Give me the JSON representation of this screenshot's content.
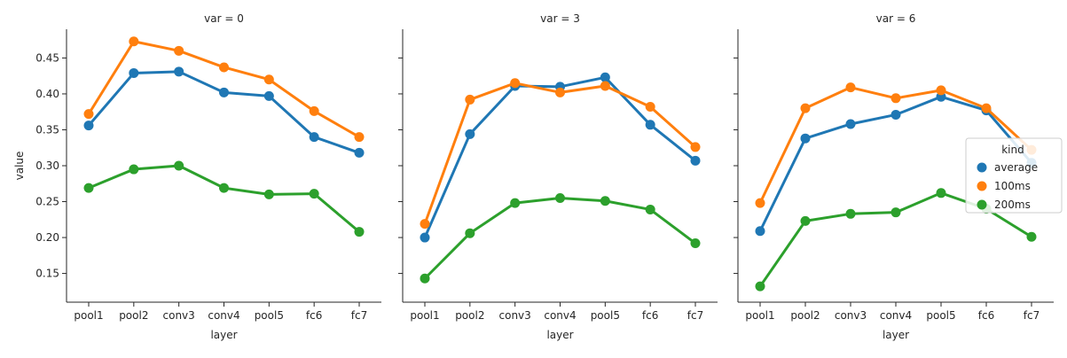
{
  "chart_data": {
    "type": "line",
    "layout": "facet-grid",
    "xlabel": "layer",
    "ylabel": "value",
    "categories": [
      "pool1",
      "pool2",
      "conv3",
      "conv4",
      "pool5",
      "fc6",
      "fc7"
    ],
    "ylim": [
      0.11,
      0.49
    ],
    "yticks": [
      0.15,
      0.2,
      0.25,
      0.3,
      0.35,
      0.4,
      0.45
    ],
    "ytick_labels": [
      "0.15",
      "0.20",
      "0.25",
      "0.30",
      "0.35",
      "0.40",
      "0.45"
    ],
    "grid": false,
    "legend": {
      "title": "kind",
      "placement": "right",
      "entries": [
        {
          "name": "average",
          "color": "#1f77b4"
        },
        {
          "name": "100ms",
          "color": "#ff7f0e"
        },
        {
          "name": "200ms",
          "color": "#2ca02c"
        }
      ]
    },
    "panels": [
      {
        "title": "var = 0",
        "series": [
          {
            "name": "average",
            "color": "#1f77b4",
            "values": [
              0.356,
              0.429,
              0.431,
              0.402,
              0.397,
              0.34,
              0.318
            ]
          },
          {
            "name": "100ms",
            "color": "#ff7f0e",
            "values": [
              0.372,
              0.473,
              0.46,
              0.437,
              0.42,
              0.376,
              0.34
            ]
          },
          {
            "name": "200ms",
            "color": "#2ca02c",
            "values": [
              0.269,
              0.295,
              0.3,
              0.269,
              0.26,
              0.261,
              0.208
            ]
          }
        ]
      },
      {
        "title": "var = 3",
        "series": [
          {
            "name": "average",
            "color": "#1f77b4",
            "values": [
              0.2,
              0.344,
              0.411,
              0.41,
              0.423,
              0.357,
              0.307
            ]
          },
          {
            "name": "100ms",
            "color": "#ff7f0e",
            "values": [
              0.219,
              0.392,
              0.415,
              0.402,
              0.411,
              0.382,
              0.326
            ]
          },
          {
            "name": "200ms",
            "color": "#2ca02c",
            "values": [
              0.143,
              0.206,
              0.248,
              0.255,
              0.251,
              0.239,
              0.192
            ]
          }
        ]
      },
      {
        "title": "var = 6",
        "series": [
          {
            "name": "average",
            "color": "#1f77b4",
            "values": [
              0.209,
              0.338,
              0.358,
              0.371,
              0.396,
              0.377,
              0.304
            ]
          },
          {
            "name": "100ms",
            "color": "#ff7f0e",
            "values": [
              0.248,
              0.38,
              0.409,
              0.394,
              0.405,
              0.38,
              0.322
            ]
          },
          {
            "name": "200ms",
            "color": "#2ca02c",
            "values": [
              0.132,
              0.223,
              0.233,
              0.235,
              0.262,
              0.24,
              0.201
            ]
          }
        ]
      }
    ]
  }
}
